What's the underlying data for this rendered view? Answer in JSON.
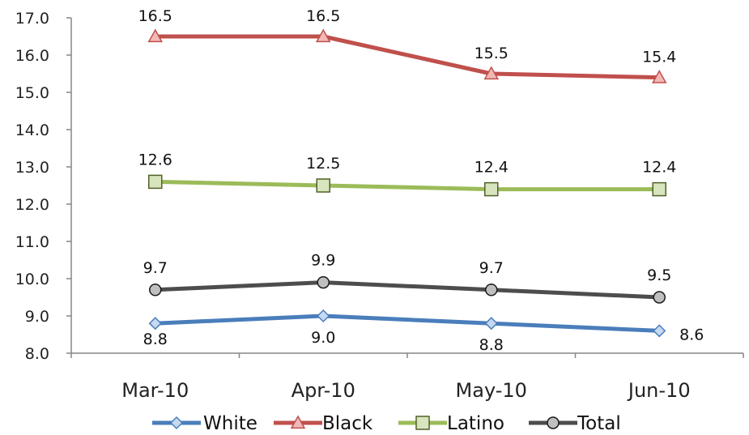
{
  "chart_data": {
    "type": "line",
    "categories": [
      "Mar-10",
      "Apr-10",
      "May-10",
      "Jun-10"
    ],
    "ylim": [
      8.0,
      17.0
    ],
    "yticks": [
      "8.0",
      "9.0",
      "10.0",
      "11.0",
      "12.0",
      "13.0",
      "14.0",
      "15.0",
      "16.0",
      "17.0"
    ],
    "grid": false,
    "legend_placement": "bottom",
    "series": [
      {
        "name": "White",
        "values": [
          8.8,
          9.0,
          8.8,
          8.6
        ],
        "labels": [
          "8.8",
          "9.0",
          "8.8",
          "8.6"
        ],
        "color": "#4a7ebb",
        "marker": "diamond",
        "marker_fill": "#c6d9f1"
      },
      {
        "name": "Black",
        "values": [
          16.5,
          16.5,
          15.5,
          15.4
        ],
        "labels": [
          "16.5",
          "16.5",
          "15.5",
          "15.4"
        ],
        "color": "#c0504d",
        "marker": "triangle",
        "marker_fill": "#f2b8b6"
      },
      {
        "name": "Latino",
        "values": [
          12.6,
          12.5,
          12.4,
          12.4
        ],
        "labels": [
          "12.6",
          "12.5",
          "12.4",
          "12.4"
        ],
        "color": "#9bbb59",
        "marker": "square",
        "marker_fill": "#d7e4bd",
        "marker_stroke": "#4f6228"
      },
      {
        "name": "Total",
        "values": [
          9.7,
          9.9,
          9.7,
          9.5
        ],
        "labels": [
          "9.7",
          "9.9",
          "9.7",
          "9.5"
        ],
        "color": "#4d4d4d",
        "marker": "circle",
        "marker_fill": "#bfbfbf"
      }
    ]
  }
}
